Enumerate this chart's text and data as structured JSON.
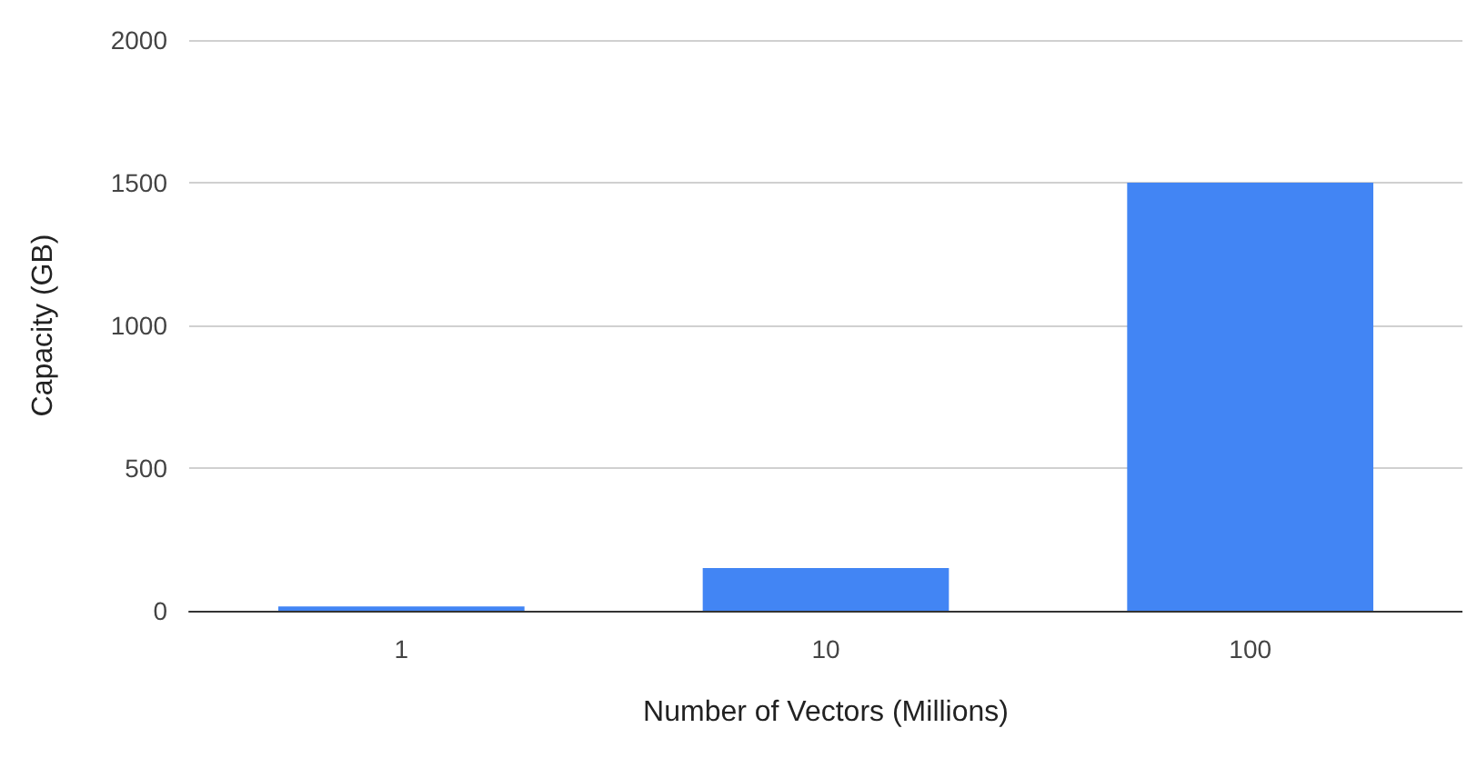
{
  "chart_data": {
    "type": "bar",
    "xlabel": "Number of Vectors (Millions)",
    "ylabel": "Capacity (GB)",
    "categories": [
      "1",
      "10",
      "100"
    ],
    "values": [
      15,
      150,
      1500
    ],
    "color": "#4285f4",
    "ylim": [
      0,
      2000
    ],
    "yticks": [
      0,
      500,
      1000,
      1500,
      2000
    ],
    "grid": "y"
  }
}
